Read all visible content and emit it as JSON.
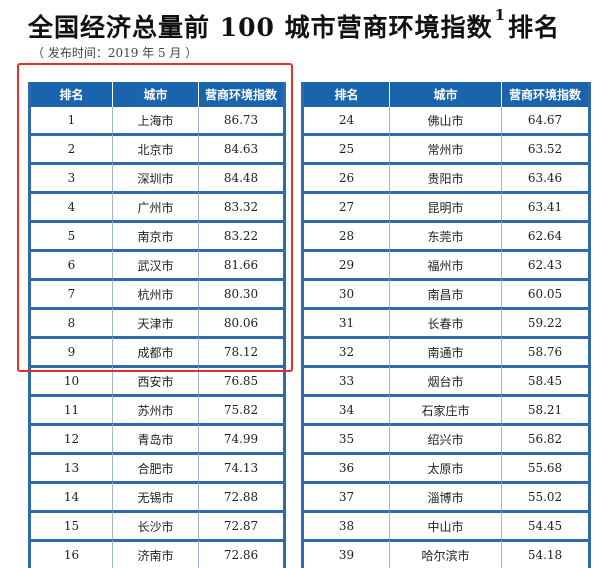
{
  "title_main": "全国经济总量前 100 城市营商环境指数",
  "title_sup": "1",
  "title_tail": "排名",
  "subtitle": "（ 发布时间：2019 年 5 月 ）",
  "headers": [
    "排名",
    "城市",
    "营商环境指数"
  ],
  "left_rows": [
    {
      "rank": "1",
      "city": "上海市",
      "index": "86.73"
    },
    {
      "rank": "2",
      "city": "北京市",
      "index": "84.63"
    },
    {
      "rank": "3",
      "city": "深圳市",
      "index": "84.48"
    },
    {
      "rank": "4",
      "city": "广州市",
      "index": "83.32"
    },
    {
      "rank": "5",
      "city": "南京市",
      "index": "83.22"
    },
    {
      "rank": "6",
      "city": "武汉市",
      "index": "81.66"
    },
    {
      "rank": "7",
      "city": "杭州市",
      "index": "80.30"
    },
    {
      "rank": "8",
      "city": "天津市",
      "index": "80.06"
    },
    {
      "rank": "9",
      "city": "成都市",
      "index": "78.12"
    },
    {
      "rank": "10",
      "city": "西安市",
      "index": "76.85"
    },
    {
      "rank": "11",
      "city": "苏州市",
      "index": "75.82"
    },
    {
      "rank": "12",
      "city": "青岛市",
      "index": "74.99"
    },
    {
      "rank": "13",
      "city": "合肥市",
      "index": "74.13"
    },
    {
      "rank": "14",
      "city": "无锡市",
      "index": "72.88"
    },
    {
      "rank": "15",
      "city": "长沙市",
      "index": "72.87"
    },
    {
      "rank": "16",
      "city": "济南市",
      "index": "72.86"
    }
  ],
  "right_rows": [
    {
      "rank": "24",
      "city": "佛山市",
      "index": "64.67"
    },
    {
      "rank": "25",
      "city": "常州市",
      "index": "63.52"
    },
    {
      "rank": "26",
      "city": "贵阳市",
      "index": "63.46"
    },
    {
      "rank": "27",
      "city": "昆明市",
      "index": "63.41"
    },
    {
      "rank": "28",
      "city": "东莞市",
      "index": "62.64"
    },
    {
      "rank": "29",
      "city": "福州市",
      "index": "62.43"
    },
    {
      "rank": "30",
      "city": "南昌市",
      "index": "60.05"
    },
    {
      "rank": "31",
      "city": "长春市",
      "index": "59.22"
    },
    {
      "rank": "32",
      "city": "南通市",
      "index": "58.76"
    },
    {
      "rank": "33",
      "city": "烟台市",
      "index": "58.45"
    },
    {
      "rank": "34",
      "city": "石家庄市",
      "index": "58.21"
    },
    {
      "rank": "35",
      "city": "绍兴市",
      "index": "56.82"
    },
    {
      "rank": "36",
      "city": "太原市",
      "index": "55.68"
    },
    {
      "rank": "37",
      "city": "淄博市",
      "index": "55.02"
    },
    {
      "rank": "38",
      "city": "中山市",
      "index": "54.45"
    },
    {
      "rank": "39",
      "city": "哈尔滨市",
      "index": "54.18"
    }
  ],
  "colors": {
    "header_bg": "#1a63ad",
    "row_border": "#2f6ab1",
    "highlight": "#e0302a"
  }
}
